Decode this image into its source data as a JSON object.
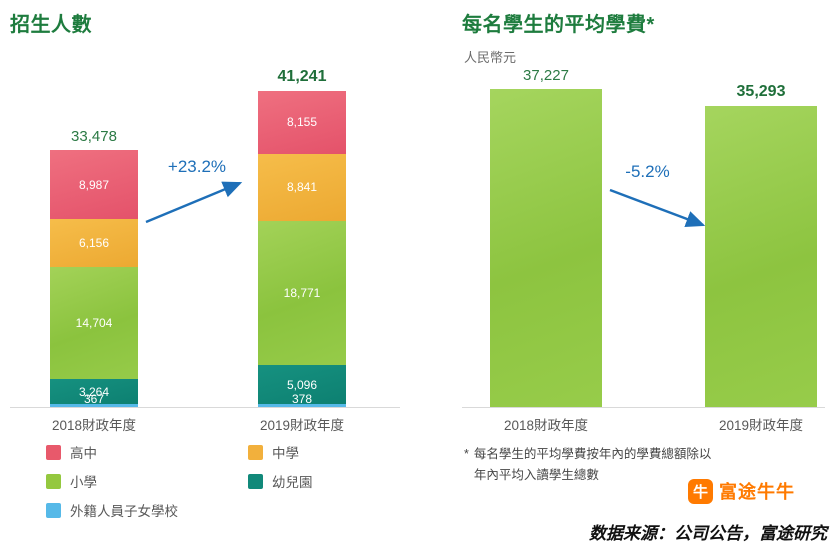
{
  "chart_data": [
    {
      "type": "bar",
      "stacked": true,
      "title": "招生人數",
      "categories": [
        "2018財政年度",
        "2019財政年度"
      ],
      "series": [
        {
          "name": "高中",
          "values": [
            8987,
            8155
          ],
          "color": "#e8596b"
        },
        {
          "name": "中學",
          "values": [
            6156,
            8841
          ],
          "color": "#f2b03c"
        },
        {
          "name": "小學",
          "values": [
            14704,
            18771
          ],
          "color": "#94c83f"
        },
        {
          "name": "幼兒園",
          "values": [
            3264,
            5096
          ],
          "color": "#11897a"
        },
        {
          "name": "外籍人員子女學校",
          "values": [
            367,
            378
          ],
          "color": "#56b9e8"
        }
      ],
      "totals": [
        33478,
        41241
      ],
      "totals_bold": [
        false,
        true
      ],
      "annotation": "+23.2%",
      "legend_position": "bottom-left",
      "grid": false
    },
    {
      "type": "bar",
      "title": "每名學生的平均學費*",
      "ylabel": "人民幣元",
      "categories": [
        "2018財政年度",
        "2019財政年度"
      ],
      "values": [
        37227,
        35293
      ],
      "values_bold": [
        false,
        true
      ],
      "annotation": "-5.2%",
      "bar_color": "#94c83f",
      "grid": false
    }
  ],
  "footnote": {
    "marker": "*",
    "line1": "每名學生的平均學費按年內的學費總額除以",
    "line2": "年內平均入讀學生總數"
  },
  "source": "数据来源：公司公告，富途研究",
  "logo": {
    "text": "富途牛牛",
    "icon": "牛",
    "color": "#ff7a00"
  },
  "colors": {
    "title_green": "#1e7c3e",
    "value_green": "#2c7a45",
    "arrow_blue": "#1e6fb8",
    "axis_gray": "#595959"
  }
}
